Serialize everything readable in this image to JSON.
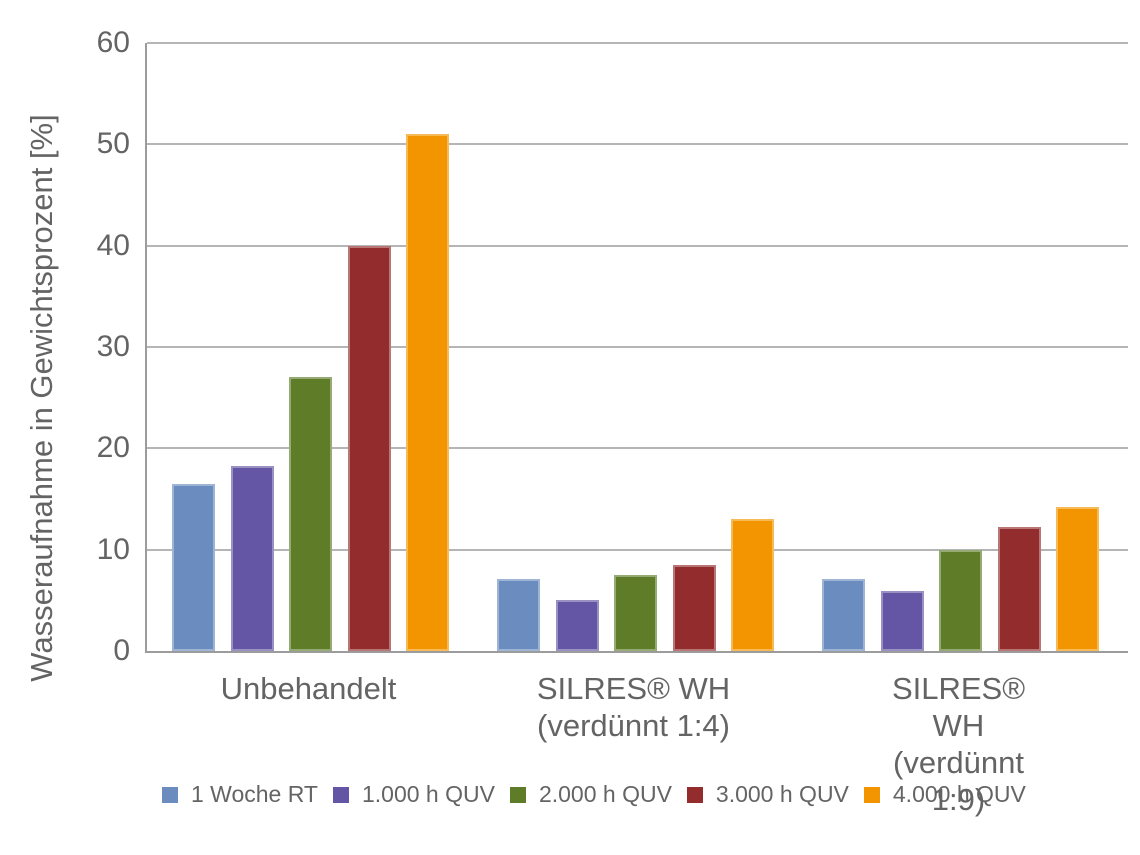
{
  "chart_data": {
    "type": "bar",
    "title": "",
    "xlabel": "",
    "ylabel": "Wasseraufnahme in Gewichtsprozent [%]",
    "ylim": [
      0,
      60
    ],
    "yticks": [
      0,
      10,
      20,
      30,
      40,
      50,
      60
    ],
    "grid": "horizontal",
    "legend_position": "bottom",
    "categories": [
      "Unbehandelt",
      "SILRES® WH\n(verdünnt 1:4)",
      "SILRES® WH\n(verdünnt 1:9)"
    ],
    "series": [
      {
        "name": "1 Woche RT",
        "color": "#6b8cbf",
        "values": [
          16.5,
          7.1,
          7.1
        ]
      },
      {
        "name": "1.000 h QUV",
        "color": "#6456a4",
        "values": [
          18.3,
          5.0,
          5.9
        ]
      },
      {
        "name": "2.000 h QUV",
        "color": "#5f7d28",
        "values": [
          27.0,
          7.5,
          10.0
        ]
      },
      {
        "name": "3.000 h QUV",
        "color": "#932d2d",
        "values": [
          40.0,
          8.5,
          12.2
        ]
      },
      {
        "name": "4.000 h QUV",
        "color": "#f39500",
        "values": [
          51.0,
          13.0,
          14.2
        ]
      }
    ],
    "colors": {
      "axis": "#9c9c9c",
      "gridline": "#b5b5b5",
      "text": "#646464",
      "background": "#ffffff"
    }
  }
}
